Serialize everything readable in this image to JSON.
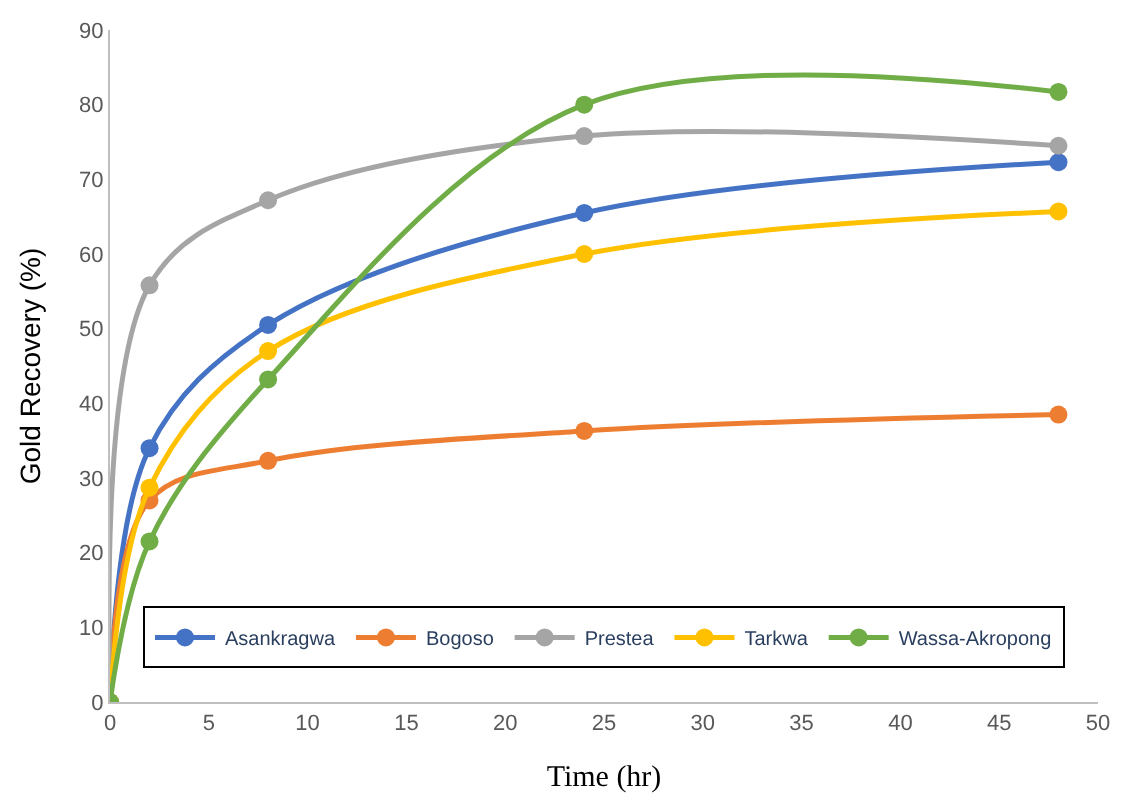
{
  "chart_data": {
    "type": "line",
    "xlabel": "Time (hr)",
    "ylabel": "Gold Recovery (%)",
    "x": [
      0,
      2,
      8,
      24,
      48
    ],
    "series": [
      {
        "name": "Asankragwa",
        "color": "#4472c4",
        "values": [
          0,
          34,
          50.5,
          65.5,
          72.3
        ]
      },
      {
        "name": "Bogoso",
        "color": "#ed7d31",
        "values": [
          0,
          27,
          32.3,
          36.3,
          38.5
        ]
      },
      {
        "name": "Prestea",
        "color": "#a5a5a5",
        "values": [
          0,
          55.8,
          67.2,
          75.8,
          74.5
        ]
      },
      {
        "name": "Tarkwa",
        "color": "#ffc000",
        "values": [
          0,
          28.7,
          47,
          60,
          65.7
        ]
      },
      {
        "name": "Wassa-Akropong",
        "color": "#70ad47",
        "values": [
          0,
          21.5,
          43.2,
          80,
          81.7
        ]
      }
    ],
    "xlim": [
      0,
      50
    ],
    "xticks": [
      0,
      5,
      10,
      15,
      20,
      25,
      30,
      35,
      40,
      45,
      50
    ],
    "ylim": [
      0,
      90
    ],
    "yticks": [
      0,
      10,
      20,
      30,
      40,
      50,
      60,
      70,
      80,
      90
    ],
    "legend": "bottom",
    "marker": "circle",
    "line_style": "solid"
  }
}
